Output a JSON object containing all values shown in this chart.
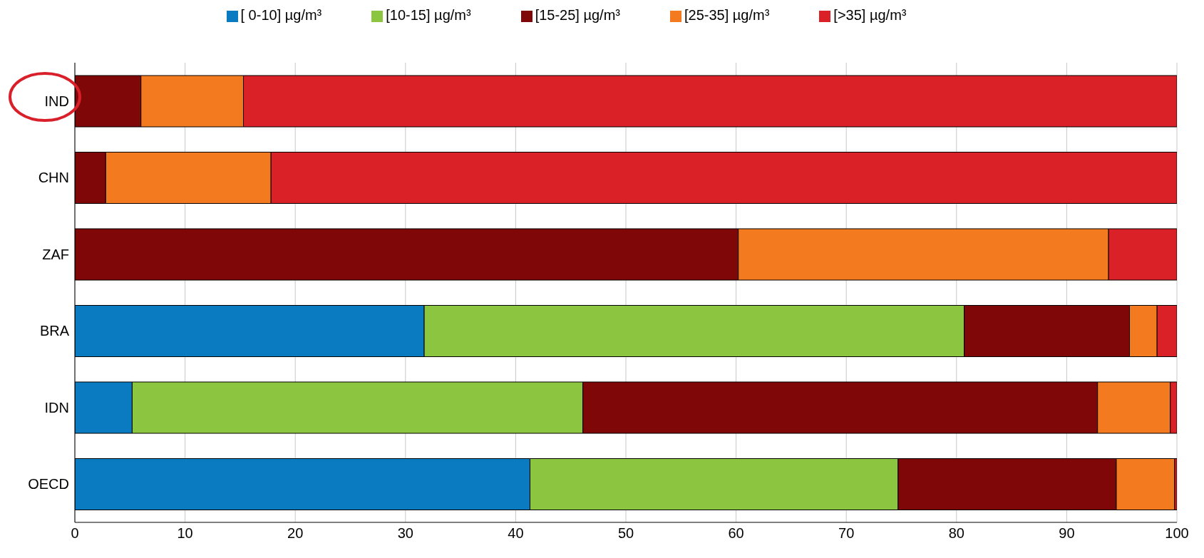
{
  "chart_data": {
    "type": "bar",
    "orientation": "horizontal",
    "stacked": true,
    "categories": [
      "IND",
      "CHN",
      "ZAF",
      "BRA",
      "IDN",
      "OECD"
    ],
    "series": [
      {
        "name": "[ 0-10] µg/m³",
        "color": "#0a7bc1",
        "values": [
          0,
          0,
          0,
          31.7,
          5.2,
          41.3
        ]
      },
      {
        "name": "[10-15] µg/m³",
        "color": "#8cc53f",
        "values": [
          null,
          null,
          null,
          49.0,
          40.9,
          33.4
        ]
      },
      {
        "name": "[15-25] µg/m³",
        "color": "#7f0708",
        "values": [
          6.0,
          2.8,
          60.2,
          15.0,
          46.7,
          19.8
        ]
      },
      {
        "name": "[25-35] µg/m³",
        "color": "#f47a20",
        "values": [
          9.3,
          15.0,
          33.6,
          2.5,
          6.6,
          5.3
        ]
      },
      {
        "name": "[>35] µg/m³",
        "color": "#da2128",
        "values": [
          84.7,
          82.2,
          6.2,
          1.8,
          0.6,
          0.2
        ]
      }
    ],
    "xlim": [
      0,
      100
    ],
    "xticks": [
      0,
      10,
      20,
      30,
      40,
      50,
      60,
      70,
      80,
      90,
      100
    ],
    "grid": "x",
    "legend": "top"
  }
}
